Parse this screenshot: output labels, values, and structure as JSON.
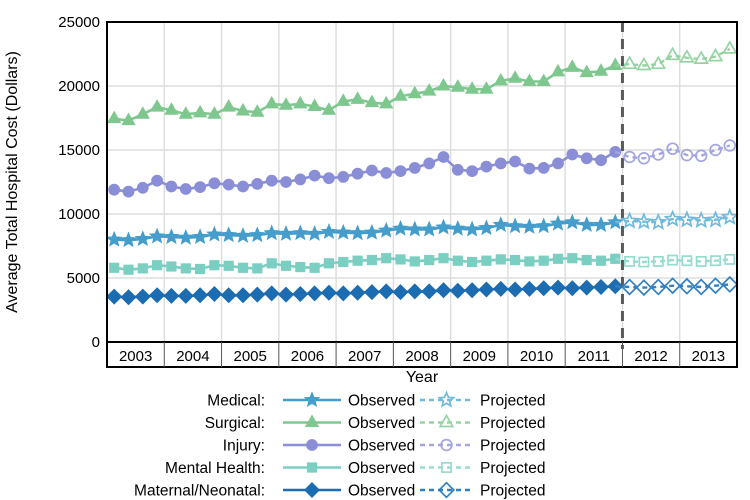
{
  "chart_data": {
    "type": "line",
    "title": "",
    "xlabel": "Year",
    "ylabel": "Average Total Hospital Cost (Dollars)",
    "x_categories": [
      "2003",
      "2004",
      "2005",
      "2006",
      "2007",
      "2008",
      "2009",
      "2010",
      "2011",
      "2012",
      "2013"
    ],
    "points_per_year": 4,
    "observed_range": "2003Q1-2011Q4",
    "projected_range": "2012Q1-2013Q4",
    "ylim": [
      0,
      25000
    ],
    "yticks": [
      0,
      5000,
      10000,
      15000,
      20000,
      25000
    ],
    "grid": true,
    "reference_line": {
      "position_between_years": [
        "2011",
        "2012"
      ],
      "style": "dashed",
      "color": "#595959"
    },
    "legend": {
      "observed_label": "Observed",
      "projected_label": "Projected",
      "position": "bottom"
    },
    "series": [
      {
        "name": "Medical",
        "legend_label": "Medical:",
        "marker": "star",
        "color_observed": "#449DCB",
        "color_projected": "#72BADC",
        "observed": [
          8000,
          7950,
          8050,
          8250,
          8200,
          8150,
          8200,
          8400,
          8350,
          8300,
          8350,
          8500,
          8450,
          8500,
          8450,
          8600,
          8550,
          8500,
          8550,
          8700,
          8850,
          8800,
          8800,
          8950,
          8850,
          8800,
          8900,
          9150,
          9050,
          9000,
          9050,
          9250,
          9350,
          9150,
          9150,
          9350
        ],
        "projected": [
          9450,
          9400,
          9350,
          9600,
          9550,
          9500,
          9550,
          9750
        ]
      },
      {
        "name": "Surgical",
        "legend_label": "Surgical:",
        "marker": "triangle",
        "color_observed": "#7EC88F",
        "color_projected": "#96D3A3",
        "observed": [
          17450,
          17300,
          17800,
          18350,
          18100,
          17800,
          17900,
          17800,
          18350,
          18050,
          17950,
          18600,
          18500,
          18600,
          18400,
          18100,
          18800,
          18950,
          18700,
          18600,
          19200,
          19400,
          19600,
          20000,
          19900,
          19750,
          19750,
          20400,
          20600,
          20350,
          20350,
          21100,
          21450,
          21050,
          21150,
          21600
        ],
        "projected": [
          21700,
          21600,
          21700,
          22400,
          22200,
          22100,
          22300,
          22900
        ]
      },
      {
        "name": "Injury",
        "legend_label": "Injury:",
        "marker": "circle",
        "color_observed": "#8A8ED6",
        "color_projected": "#A3A6DF",
        "observed": [
          11900,
          11750,
          12050,
          12600,
          12150,
          11950,
          12100,
          12400,
          12300,
          12150,
          12350,
          12600,
          12500,
          12700,
          13000,
          12800,
          12900,
          13150,
          13400,
          13200,
          13350,
          13600,
          13950,
          14450,
          13450,
          13350,
          13700,
          13950,
          14100,
          13550,
          13600,
          13950,
          14650,
          14350,
          14200,
          14850
        ],
        "projected": [
          14450,
          14350,
          14650,
          15100,
          14600,
          14550,
          15000,
          15350
        ]
      },
      {
        "name": "Mental Health",
        "legend_label": "Mental Health:",
        "marker": "square",
        "color_observed": "#7BCFC2",
        "color_projected": "#95DBD0",
        "observed": [
          5800,
          5650,
          5750,
          6000,
          5900,
          5750,
          5700,
          6000,
          5950,
          5800,
          5750,
          6150,
          5950,
          5850,
          5800,
          6150,
          6250,
          6350,
          6400,
          6550,
          6450,
          6300,
          6400,
          6550,
          6350,
          6250,
          6350,
          6450,
          6400,
          6300,
          6350,
          6500,
          6550,
          6400,
          6350,
          6500
        ],
        "projected": [
          6300,
          6250,
          6300,
          6400,
          6350,
          6300,
          6350,
          6450
        ]
      },
      {
        "name": "Maternal/Neonatal",
        "legend_label": "Maternal/Neonatal:",
        "marker": "diamond",
        "color_observed": "#1C6CB2",
        "color_projected": "#3380C0",
        "observed": [
          3550,
          3500,
          3550,
          3650,
          3600,
          3600,
          3650,
          3750,
          3650,
          3650,
          3700,
          3800,
          3700,
          3750,
          3800,
          3850,
          3800,
          3850,
          3900,
          3950,
          3900,
          3950,
          3950,
          4050,
          4000,
          4050,
          4100,
          4150,
          4100,
          4150,
          4200,
          4250,
          4200,
          4250,
          4300,
          4350
        ],
        "projected": [
          4300,
          4250,
          4300,
          4400,
          4350,
          4300,
          4400,
          4500
        ]
      }
    ],
    "style": {
      "grid_color": "#DEDEDE",
      "frame_color": "#000000",
      "band_separator_color": "#555555",
      "text_color": "#000000"
    }
  }
}
